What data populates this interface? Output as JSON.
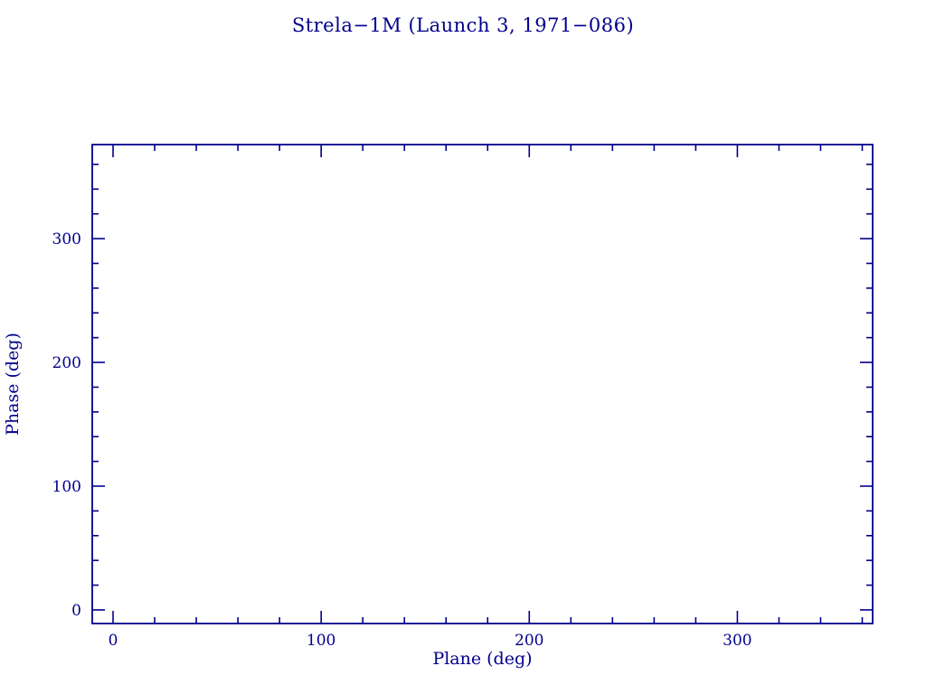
{
  "page": {
    "background_color": "#ffffff",
    "accent_color": "#00008B"
  },
  "chart_data": {
    "type": "scatter",
    "title": "Strela−1M (Launch 3, 1971−086)",
    "xlabel": "Plane (deg)",
    "ylabel": "Phase (deg)",
    "xlim": [
      -10,
      365
    ],
    "ylim": [
      -11,
      376
    ],
    "x_major_ticks": [
      0,
      100,
      200,
      300
    ],
    "x_major_tick_labels": [
      "0",
      "100",
      "200",
      "300"
    ],
    "y_major_ticks": [
      0,
      100,
      200,
      300
    ],
    "y_major_tick_labels": [
      "0",
      "100",
      "200",
      "300"
    ],
    "x_minor_tick_step": 20,
    "y_minor_tick_step": 20,
    "grid": false,
    "frame": true,
    "legend": null,
    "series": []
  }
}
